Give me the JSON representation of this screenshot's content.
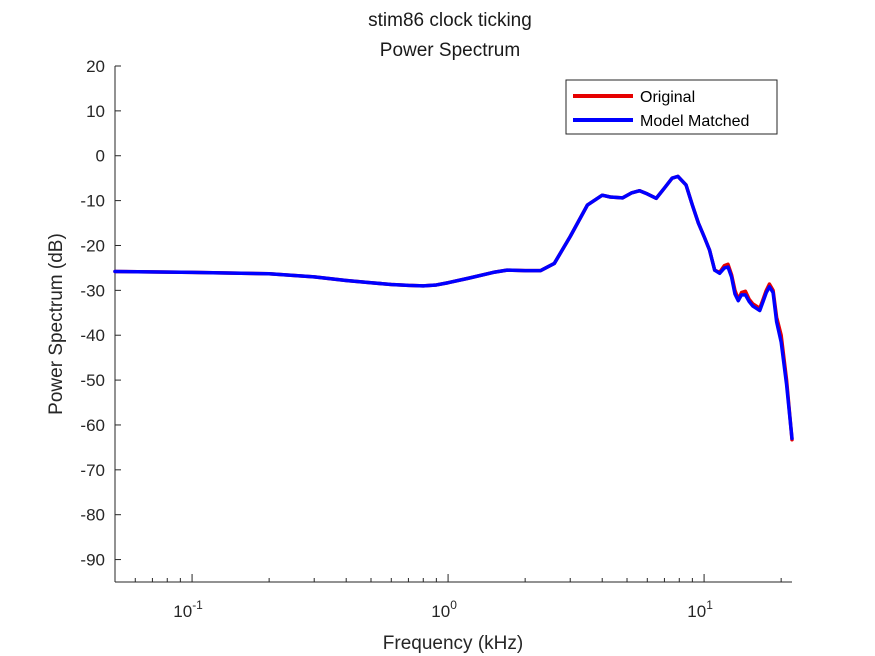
{
  "chart_data": {
    "type": "line",
    "title": "stim86 clock ticking",
    "subtitle": "Power Spectrum",
    "xlabel": "Frequency (kHz)",
    "ylabel": "Power Spectrum (dB)",
    "xscale": "log",
    "xlim": [
      0.05,
      22.05
    ],
    "ylim": [
      -95,
      20
    ],
    "yticks": [
      20,
      10,
      0,
      -10,
      -20,
      -30,
      -40,
      -50,
      -60,
      -70,
      -80,
      -90
    ],
    "xticks": [
      {
        "value": 0.1,
        "base": "10",
        "exp": "-1"
      },
      {
        "value": 1,
        "base": "10",
        "exp": "0"
      },
      {
        "value": 10,
        "base": "10",
        "exp": "1"
      }
    ],
    "grid": false,
    "legend": {
      "position": "top-right"
    },
    "series": [
      {
        "name": "Original",
        "color": "#e60000",
        "x": [
          0.05,
          0.1,
          0.2,
          0.3,
          0.4,
          0.5,
          0.6,
          0.7,
          0.8,
          0.9,
          1.0,
          1.2,
          1.5,
          1.7,
          2.0,
          2.3,
          2.6,
          3.0,
          3.5,
          4.0,
          4.3,
          4.8,
          5.2,
          5.6,
          6.0,
          6.5,
          7.0,
          7.5,
          7.9,
          8.5,
          9.0,
          9.5,
          10.0,
          10.5,
          11.0,
          11.5,
          12.0,
          12.4,
          12.8,
          13.2,
          13.6,
          14.0,
          14.5,
          15.0,
          15.5,
          16.0,
          16.5,
          17.0,
          17.5,
          18.0,
          18.6,
          19.2,
          20.0,
          21.0,
          22.05
        ],
        "y": [
          -25.8,
          -26,
          -26.3,
          -27,
          -27.8,
          -28.3,
          -28.7,
          -28.9,
          -29,
          -28.8,
          -28.3,
          -27.3,
          -26,
          -25.5,
          -25.6,
          -25.6,
          -24,
          -18,
          -11,
          -8.8,
          -9.2,
          -9.4,
          -8.3,
          -7.8,
          -8.5,
          -9.5,
          -7.2,
          -5,
          -4.6,
          -6.5,
          -11,
          -15,
          -18,
          -21,
          -25.5,
          -26,
          -24.5,
          -24.2,
          -26.5,
          -30,
          -32,
          -30.5,
          -30.2,
          -32,
          -33,
          -33.5,
          -34,
          -32,
          -30,
          -28.6,
          -30,
          -36,
          -40,
          -50,
          -63.3
        ]
      },
      {
        "name": "Model Matched",
        "color": "#0000ff",
        "x": [
          0.05,
          0.1,
          0.2,
          0.3,
          0.4,
          0.5,
          0.6,
          0.7,
          0.8,
          0.9,
          1.0,
          1.2,
          1.5,
          1.7,
          2.0,
          2.3,
          2.6,
          3.0,
          3.5,
          4.0,
          4.3,
          4.8,
          5.2,
          5.6,
          6.0,
          6.5,
          7.0,
          7.5,
          7.9,
          8.5,
          9.0,
          9.5,
          10.0,
          10.5,
          11.0,
          11.5,
          12.0,
          12.4,
          12.8,
          13.2,
          13.6,
          14.0,
          14.5,
          15.0,
          15.5,
          16.0,
          16.5,
          17.0,
          17.5,
          18.0,
          18.6,
          19.2,
          20.0,
          21.0,
          22.05
        ],
        "y": [
          -25.8,
          -26,
          -26.3,
          -27,
          -27.8,
          -28.3,
          -28.7,
          -28.9,
          -29,
          -28.8,
          -28.3,
          -27.3,
          -26,
          -25.5,
          -25.6,
          -25.6,
          -24,
          -18,
          -11,
          -8.8,
          -9.2,
          -9.4,
          -8.3,
          -7.8,
          -8.5,
          -9.5,
          -7.2,
          -5,
          -4.6,
          -6.5,
          -11,
          -15,
          -18,
          -21,
          -25.5,
          -26.2,
          -25,
          -24.8,
          -27,
          -30.8,
          -32.3,
          -31,
          -31,
          -32.5,
          -33.5,
          -34,
          -34.5,
          -32.5,
          -30.5,
          -29.2,
          -30.5,
          -37,
          -41.5,
          -51,
          -63
        ]
      }
    ]
  }
}
